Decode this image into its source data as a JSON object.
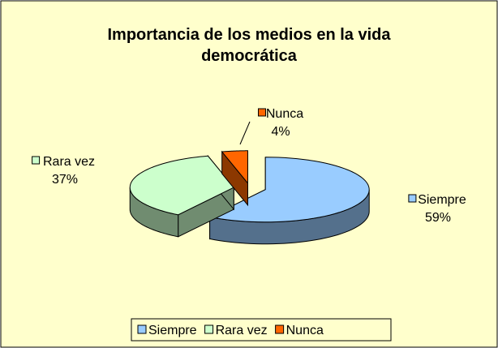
{
  "chart_data": {
    "type": "pie",
    "title": "Importancia de los medios en la vida democrática",
    "categories": [
      "Siempre",
      "Rara vez",
      "Nunca"
    ],
    "values": [
      59,
      37,
      4
    ],
    "value_labels": [
      "59%",
      "37%",
      "4%"
    ],
    "colors": [
      "#99ccff",
      "#ccffcc",
      "#ff6600"
    ],
    "legend": "bottom"
  }
}
